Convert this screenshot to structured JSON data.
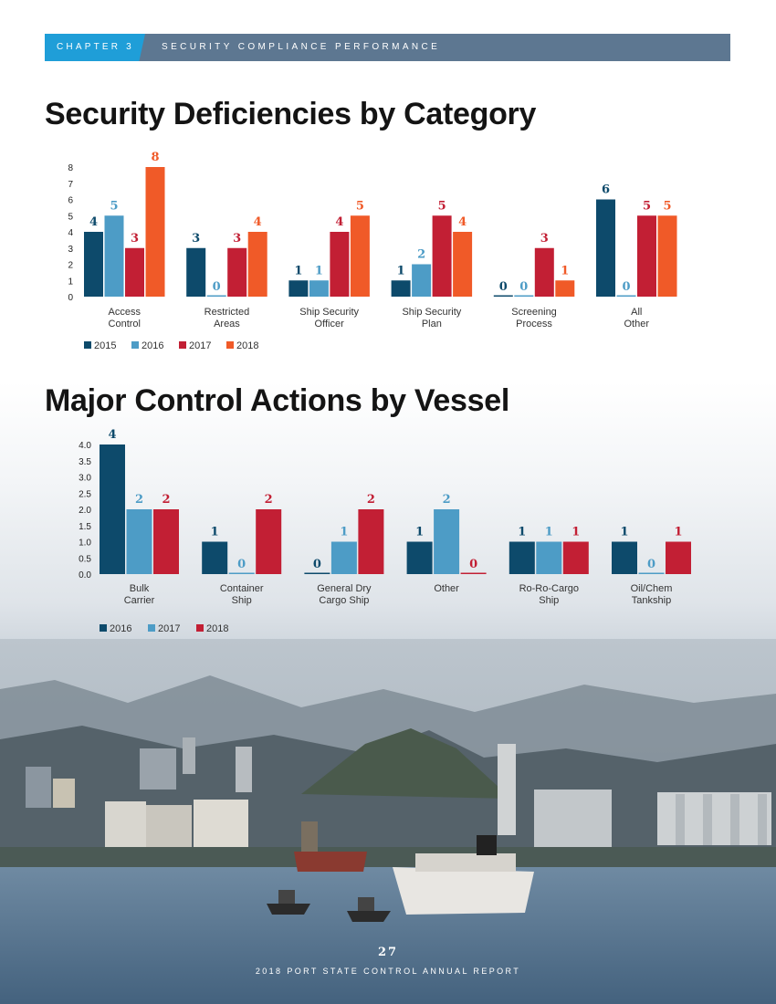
{
  "header": {
    "chapter": "CHAPTER 3",
    "section": "SECURITY COMPLIANCE PERFORMANCE"
  },
  "titles": {
    "deficiencies": "Security Deficiencies by Category",
    "actions": "Major Control Actions by Vessel"
  },
  "footer": {
    "page_number": "27",
    "report": "2018 PORT STATE CONTROL ANNUAL REPORT"
  },
  "chart_data": [
    {
      "type": "bar",
      "title": "Security Deficiencies by Category",
      "categories": [
        [
          "Access",
          "Control"
        ],
        [
          "Restricted",
          "Areas"
        ],
        [
          "Ship Security",
          "Officer"
        ],
        [
          "Ship Security",
          "Plan"
        ],
        [
          "Screening",
          "Process"
        ],
        [
          "All",
          "Other"
        ]
      ],
      "series": [
        {
          "name": "2015",
          "color": "#0d4a6b",
          "values": [
            4,
            3,
            1,
            1,
            0,
            6
          ]
        },
        {
          "name": "2016",
          "color": "#4d9cc6",
          "values": [
            5,
            0,
            1,
            2,
            0,
            0
          ]
        },
        {
          "name": "2017",
          "color": "#c21f34",
          "values": [
            3,
            3,
            4,
            5,
            3,
            5
          ]
        },
        {
          "name": "2018",
          "color": "#f05a28",
          "values": [
            8,
            4,
            5,
            4,
            1,
            5
          ]
        }
      ],
      "yticks": [
        "0",
        "1",
        "2",
        "3",
        "4",
        "5",
        "6",
        "7",
        "8"
      ],
      "ylim": [
        0,
        8
      ],
      "legend": "bottom-left"
    },
    {
      "type": "bar",
      "title": "Major Control Actions by Vessel",
      "categories": [
        [
          "Bulk",
          "Carrier"
        ],
        [
          "Container",
          "Ship"
        ],
        [
          "General Dry",
          "Cargo Ship"
        ],
        [
          "Other"
        ],
        [
          "Ro-Ro-Cargo",
          "Ship"
        ],
        [
          "Oil/Chem",
          "Tankship"
        ]
      ],
      "series": [
        {
          "name": "2016",
          "color": "#0d4a6b",
          "values": [
            4,
            1,
            0,
            1,
            1,
            1
          ]
        },
        {
          "name": "2017",
          "color": "#4d9cc6",
          "values": [
            2,
            0,
            1,
            2,
            1,
            0
          ]
        },
        {
          "name": "2018",
          "color": "#c21f34",
          "values": [
            2,
            2,
            2,
            0,
            1,
            1
          ]
        }
      ],
      "yticks": [
        "0.0",
        "0.5",
        "1.0",
        "1.5",
        "2.0",
        "2.5",
        "3.0",
        "3.5",
        "4.0"
      ],
      "ylim": [
        0,
        4
      ],
      "legend": "bottom-left"
    }
  ]
}
